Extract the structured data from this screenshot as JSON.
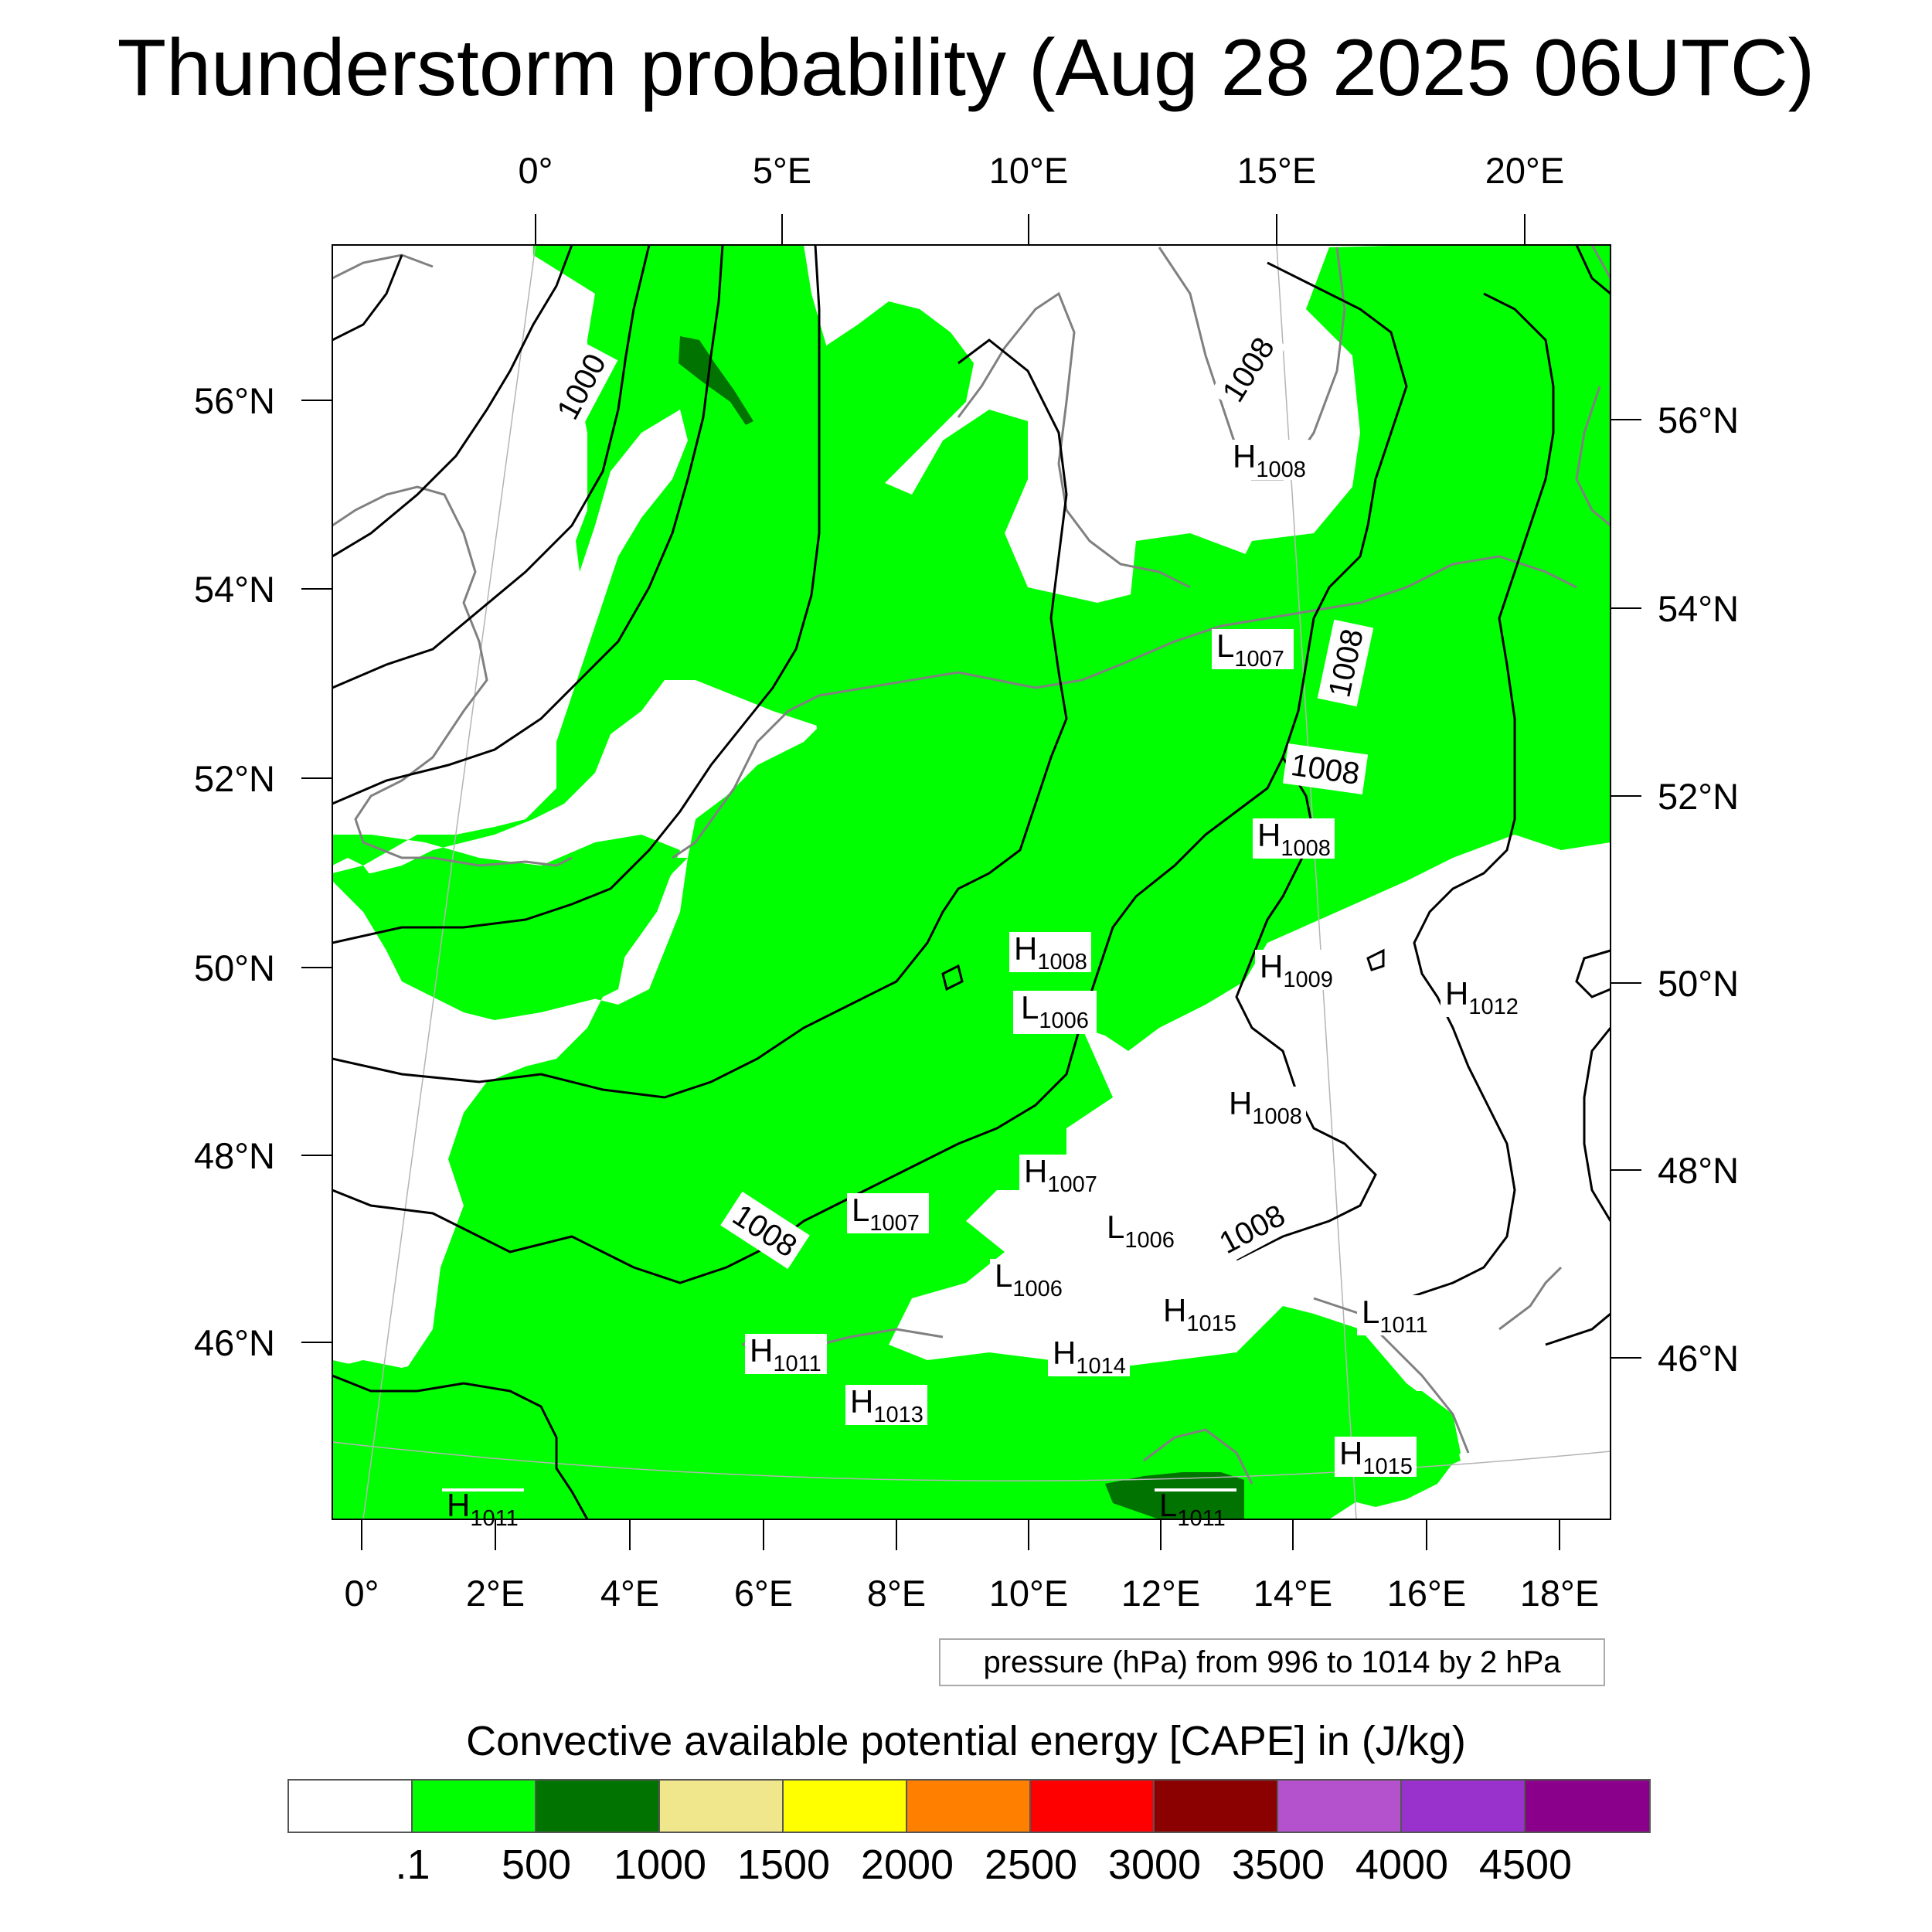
{
  "title": "Thunderstorm probability (Aug 28 2025 06UTC)",
  "top_lon_labels": [
    "0°",
    "5°E",
    "10°E",
    "15°E",
    "20°E"
  ],
  "bottom_lon_labels": [
    "0°",
    "2°E",
    "4°E",
    "6°E",
    "8°E",
    "10°E",
    "12°E",
    "14°E",
    "16°E",
    "18°E"
  ],
  "left_lat_labels": [
    "56°N",
    "54°N",
    "52°N",
    "50°N",
    "48°N",
    "46°N"
  ],
  "right_lat_labels": [
    "56°N",
    "54°N",
    "52°N",
    "50°N",
    "48°N",
    "46°N"
  ],
  "isobar_labels": [
    "1000",
    "1008",
    "1008",
    "1008",
    "1008",
    "1008"
  ],
  "pressure_centers": [
    {
      "letter": "H",
      "value": "1008"
    },
    {
      "letter": "L",
      "value": "1007"
    },
    {
      "letter": "H",
      "value": "1008"
    },
    {
      "letter": "H",
      "value": "1008"
    },
    {
      "letter": "H",
      "value": "1009"
    },
    {
      "letter": "L",
      "value": "1006"
    },
    {
      "letter": "H",
      "value": "1012"
    },
    {
      "letter": "H",
      "value": "1008"
    },
    {
      "letter": "H",
      "value": "1007"
    },
    {
      "letter": "L",
      "value": "1007"
    },
    {
      "letter": "L",
      "value": "1006"
    },
    {
      "letter": "L",
      "value": "1006"
    },
    {
      "letter": "H",
      "value": "1015"
    },
    {
      "letter": "L",
      "value": "1011"
    },
    {
      "letter": "H",
      "value": "1011"
    },
    {
      "letter": "H",
      "value": "1014"
    },
    {
      "letter": "H",
      "value": "1013"
    },
    {
      "letter": "H",
      "value": "1015"
    },
    {
      "letter": "H",
      "value": "1011"
    },
    {
      "letter": "L",
      "value": "1011"
    }
  ],
  "pressure_note": "pressure (hPa) from 996 to 1014 by 2 hPa",
  "colorbar": {
    "title": "Convective available potential energy [CAPE] in (J/kg)",
    "colors": [
      "#ffffff",
      "#00ff00",
      "#007300",
      "#f0e68c",
      "#ffff00",
      "#ff8000",
      "#ff0000",
      "#8b0000",
      "#b452cd",
      "#9932cc",
      "#8b008b"
    ],
    "labels": [
      ".1",
      "500",
      "1000",
      "1500",
      "2000",
      "2500",
      "3000",
      "3500",
      "4000",
      "4500"
    ]
  },
  "cape_color": "#00ff00",
  "cape_dark_color": "#007300"
}
